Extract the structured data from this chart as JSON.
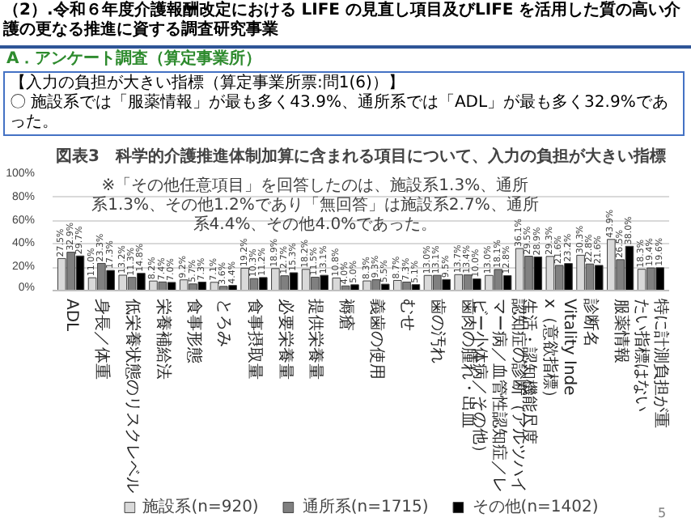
{
  "chart_data": {
    "type": "bar",
    "title": "（2）.令和６年度介護報酬改定における LIFE の見直し項目及びLIFE を活用した質の高い介護の更なる推進に資する調査研究事業",
    "subtitle": "図表3　科学的介護推進体制加算に含まれる項目について、入力の負担が大きい指標",
    "annotations": [
      "A．アンケート調査（算定事業所）",
      "【入力の負担が大きい指標（算定事業所票:問1(6)）】",
      "〇 施設系では「服薬情報」が最も多く43.9%、通所系では「ADL」が最も多く32.9%であった。",
      "※「その他任意項目」を回答したのは、施設系1.3%、通所系1.3%、その他1.2%であり「無回答」は施設系2.7%、通所系4.4%、その他4.0%であった。",
      "5"
    ],
    "categories": [
      "ADL",
      "身長／体重",
      "低栄養状態のリスクレベル",
      "栄養補給法",
      "食事形態",
      "とろみ",
      "食事摂取量",
      "必要栄養量",
      "提供栄養量",
      "褥瘡",
      "義歯の使用",
      "むせ",
      "歯の汚れ",
      "歯肉の腫れ・出血",
      "認知症の診断（アルツハイマー病／血管性認知症／レビー小体病／その他）",
      "生活・認知機能尺度",
      "Vitality Index（意欲指標）",
      "診断名",
      "服薬情報",
      "特に計測負担が重たい指標はない"
    ],
    "series": [
      {
        "name": "施設系(n=920)",
        "color": "#d9d9d9",
        "values": [
          27.5,
          11.0,
          13.2,
          8.2,
          9.2,
          7.1,
          19.2,
          18.9,
          18.2,
          10.8,
          8.3,
          8.7,
          13.0,
          13.7,
          13.0,
          36.1,
          29.3,
          30.3,
          43.9,
          18.3
        ],
        "value_labels": [
          "27.5%",
          "11.0%",
          "13.2%",
          "8.2%",
          "9.2%",
          "7.1%",
          "19.2%",
          "18.9%",
          "18.2%",
          "10.8%",
          "8.3%",
          "8.7%",
          "13.0%",
          "13.7%",
          "13.0%",
          "36.1%",
          "29.3%",
          "30.3%",
          "43.9%",
          "18.3%"
        ]
      },
      {
        "name": "通所系(n=1715)",
        "color": "#808080",
        "values": [
          32.9,
          23.3,
          11.3,
          7.4,
          5.7,
          3.6,
          10.3,
          12.7,
          11.5,
          4.0,
          9.3,
          7.3,
          13.1,
          13.4,
          18.1,
          29.5,
          21.6,
          22.8,
          26.5,
          19.4
        ],
        "value_labels": [
          "32.9%",
          "23.3%",
          "11.3%",
          "7.4%",
          "5.7%",
          "3.6%",
          "10.3%",
          "12.7%",
          "11.5%",
          "4.0%",
          "9.3%",
          "7.3%",
          "13.1%",
          "13.4%",
          "18.1%",
          "29.5%",
          "21.6%",
          "22.8%",
          "26.5%",
          "19.4%"
        ]
      },
      {
        "name": "その他(n=1402)",
        "color": "#000000",
        "values": [
          29.7,
          17.3,
          14.8,
          7.0,
          7.3,
          4.4,
          11.2,
          15.3,
          13.1,
          5.0,
          5.5,
          5.1,
          9.5,
          10.0,
          12.8,
          28.9,
          23.2,
          21.6,
          38.0,
          19.6
        ],
        "value_labels": [
          "29.7%",
          "17.3%",
          "14.8%",
          "7.0%",
          "7.3%",
          "4.4%",
          "11.2%",
          "15.3%",
          "13.1%",
          "5.0%",
          "5.5%",
          "5.1%",
          "9.5%",
          "10.0%",
          "12.8%",
          "28.9%",
          "23.2%",
          "21.6%",
          "38.0%",
          "19.6%"
        ]
      }
    ],
    "ylim": [
      0,
      100
    ],
    "yticks": [
      {
        "value": 0,
        "label": "0%"
      },
      {
        "value": 20,
        "label": "20%"
      },
      {
        "value": 40,
        "label": "40%"
      },
      {
        "value": 60,
        "label": "60%"
      },
      {
        "value": 80,
        "label": "80%"
      },
      {
        "value": 100,
        "label": "100%"
      }
    ],
    "grid": "y",
    "legend": "bottom"
  }
}
